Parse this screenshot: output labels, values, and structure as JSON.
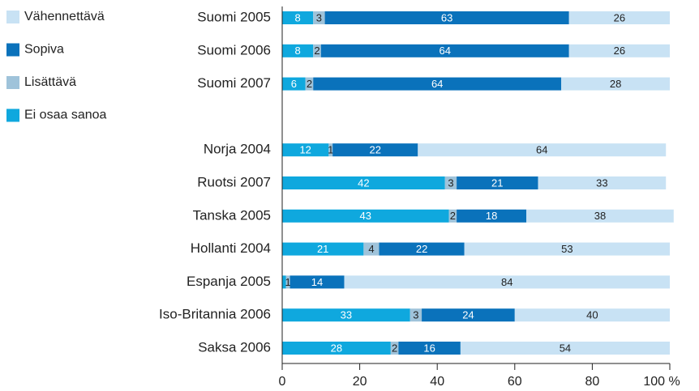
{
  "chart_data": {
    "type": "stacked-bar-horizontal",
    "categories": [
      "Suomi 2005",
      "Suomi 2006",
      "Suomi 2007",
      null,
      "Norja 2004",
      "Ruotsi 2007",
      "Tanska 2005",
      "Hollanti 2004",
      "Espanja 2005",
      "Iso-Britannia 2006",
      "Saksa 2006"
    ],
    "series": [
      {
        "name": "Ei osaa sanoa",
        "color": "#0fa8de",
        "values": [
          8,
          8,
          6,
          null,
          12,
          42,
          43,
          21,
          1,
          33,
          28
        ],
        "value_labels": [
          "8",
          "8",
          "6",
          null,
          "12",
          "42",
          "43",
          "21",
          null,
          "33",
          "28"
        ]
      },
      {
        "name": "Lisättävä",
        "color": "#9fc3da",
        "values": [
          3,
          2,
          2,
          null,
          1,
          3,
          2,
          4,
          1,
          3,
          2
        ]
      },
      {
        "name": "Sopiva",
        "color": "#0a72bb",
        "values": [
          63,
          64,
          64,
          null,
          22,
          21,
          18,
          22,
          14,
          24,
          16
        ]
      },
      {
        "name": "Vähennettävä",
        "color": "#c8e2f4",
        "values": [
          26,
          26,
          28,
          null,
          64,
          33,
          38,
          53,
          84,
          40,
          54
        ]
      }
    ],
    "legend_order": [
      "Vähennettävä",
      "Sopiva",
      "Lisättävä",
      "Ei osaa sanoa"
    ],
    "xlim": [
      0,
      100
    ],
    "xticks": [
      0,
      20,
      40,
      60,
      80,
      {
        "value": 100,
        "label": "100 %"
      }
    ]
  }
}
